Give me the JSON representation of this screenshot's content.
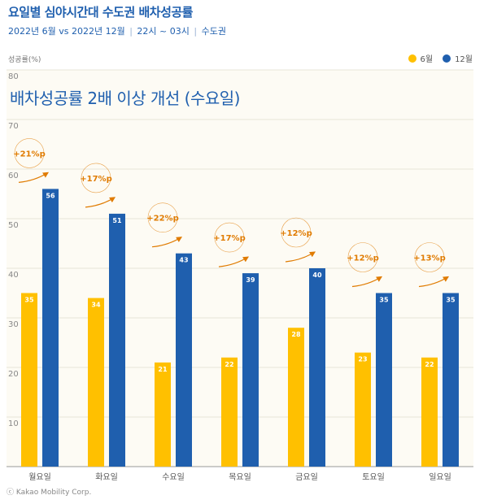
{
  "header": {
    "title": "요일별 심야시간대 수도권 배차성공률",
    "period": "2022년 6월 vs 2022년 12월",
    "time": "22시 ~ 03시",
    "region": "수도권",
    "separator": "|"
  },
  "headline": "배차성공률 2배 이상 개선 (수요일)",
  "footer": "ⓒ Kakao Mobility Corp.",
  "colors": {
    "june": "#ffc000",
    "december": "#1f5fae",
    "annotation": "#e07b00",
    "plot_bg": "#fdfbf4"
  },
  "chart_data": {
    "type": "bar",
    "ylabel": "성공률(%)",
    "ylim": [
      0,
      80
    ],
    "yticks": [
      10,
      20,
      30,
      40,
      50,
      60,
      70,
      80
    ],
    "grid": true,
    "legend_position": "top-right",
    "categories": [
      "월요일",
      "화요일",
      "수요일",
      "목요일",
      "금요일",
      "토요일",
      "일요일"
    ],
    "series": [
      {
        "name": "6월",
        "values": [
          35,
          34,
          21,
          22,
          28,
          23,
          22
        ]
      },
      {
        "name": "12월",
        "values": [
          56,
          51,
          43,
          39,
          40,
          35,
          35
        ]
      }
    ],
    "annotations": [
      "+21%p",
      "+17%p",
      "+22%p",
      "+17%p",
      "+12%p",
      "+12%p",
      "+13%p"
    ]
  }
}
